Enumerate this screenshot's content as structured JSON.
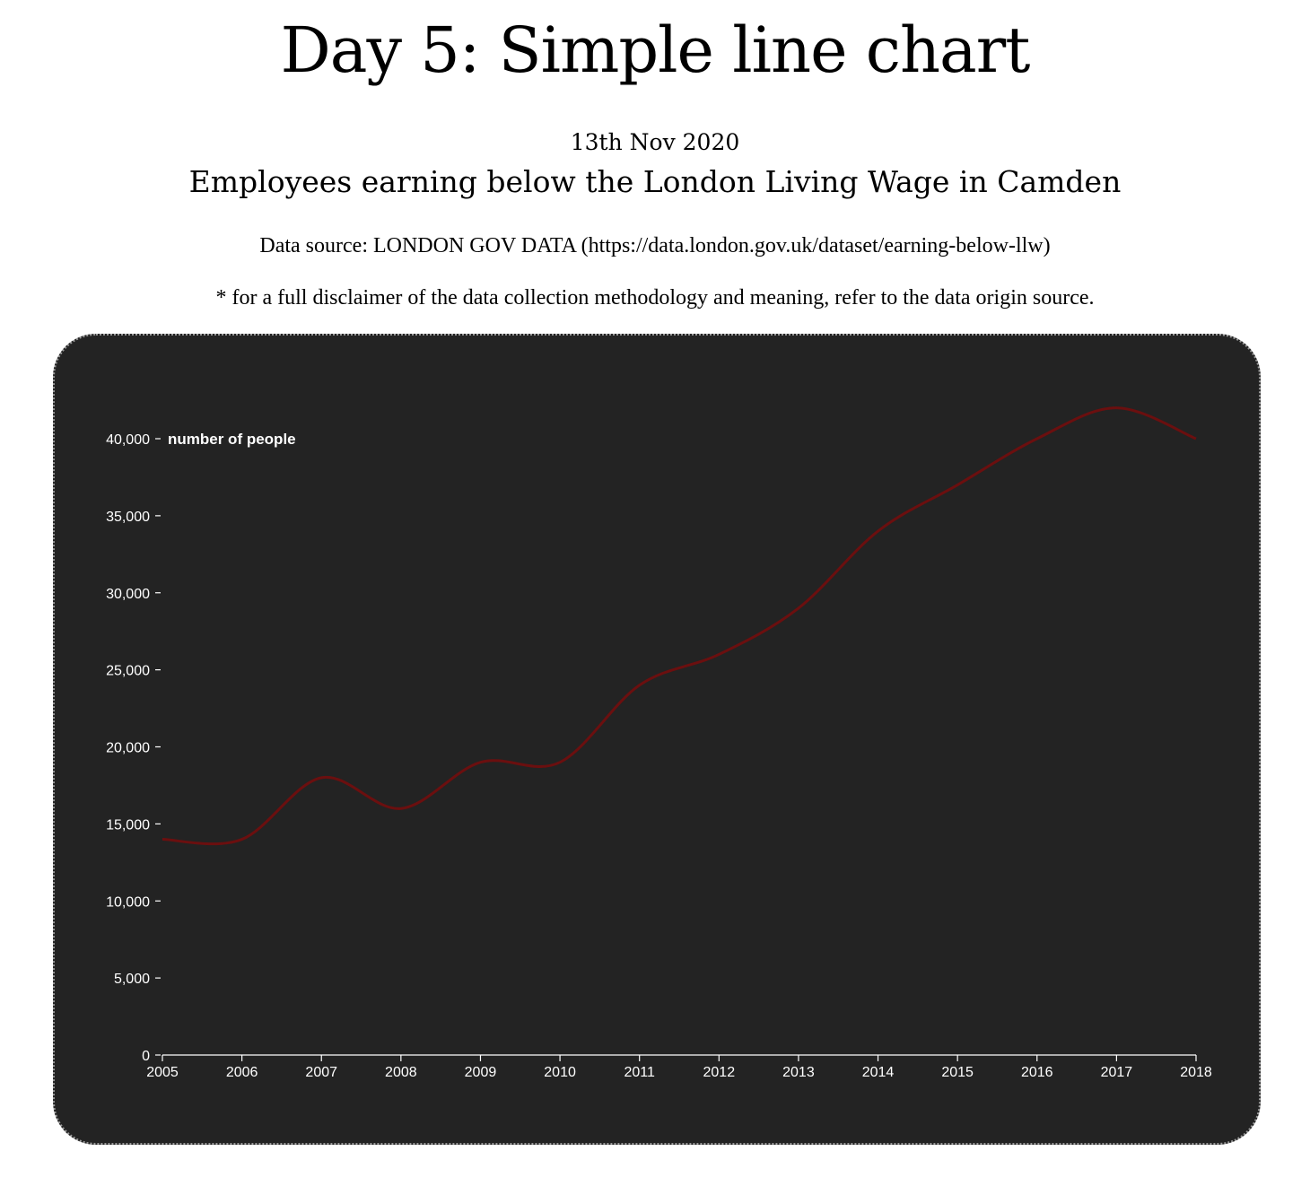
{
  "header": {
    "title": "Day 5: Simple line chart",
    "date": "13th Nov 2020",
    "subtitle": "Employees earning below the London Living Wage in Camden",
    "source": "Data source: LONDON GOV DATA (https://data.london.gov.uk/dataset/earning-below-llw)",
    "disclaimer": "* for a full disclaimer of the data collection methodology and meaning, refer to the data origin source."
  },
  "colors": {
    "card_background": "#232323",
    "line": "#6b0f0f",
    "axis_text": "#ffffff"
  },
  "chart_data": {
    "type": "line",
    "title": "",
    "xlabel": "",
    "ylabel": "number of people",
    "x": [
      2005,
      2006,
      2007,
      2008,
      2009,
      2010,
      2011,
      2012,
      2013,
      2014,
      2015,
      2016,
      2017,
      2018
    ],
    "x_tick_labels": [
      "2005",
      "2006",
      "2007",
      "2008",
      "2009",
      "2010",
      "2011",
      "2012",
      "2013",
      "2014",
      "2015",
      "2016",
      "2017",
      "2018"
    ],
    "series": [
      {
        "values": [
          14000,
          14000,
          18000,
          16000,
          19000,
          19000,
          24000,
          26000,
          29000,
          34000,
          37000,
          40000,
          42000,
          40000
        ]
      }
    ],
    "ylim": [
      0,
      40000
    ],
    "y_ticks": [
      0,
      5000,
      10000,
      15000,
      20000,
      25000,
      30000,
      35000,
      40000
    ],
    "y_tick_labels": [
      "0",
      "5,000",
      "10,000",
      "15,000",
      "20,000",
      "25,000",
      "30,000",
      "35,000",
      "40,000"
    ],
    "curve": "smooth",
    "grid": false,
    "legend": "none"
  }
}
